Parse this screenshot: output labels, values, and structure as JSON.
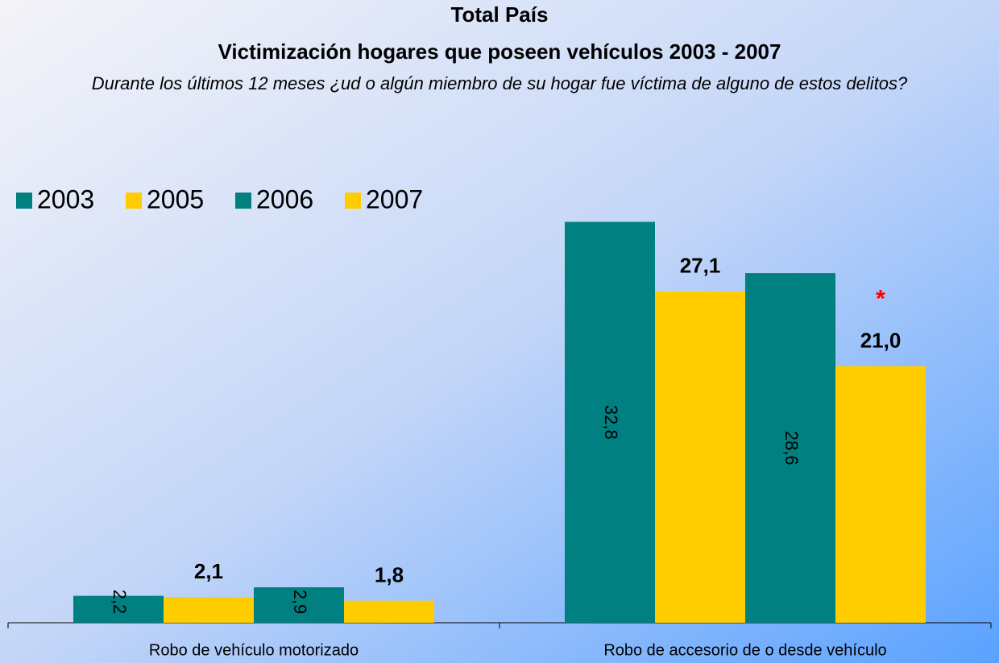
{
  "chart_data": {
    "type": "bar",
    "title": "Total País",
    "subtitle": "Victimización hogares que poseen vehículos 2003 - 2007",
    "question": "Durante los últimos 12 meses ¿ud o algún miembro de su hogar fue víctima de alguno de estos delitos?",
    "categories": [
      "Robo de vehículo motorizado",
      "Robo de accesorio de o desde vehículo"
    ],
    "series": [
      {
        "name": "2003",
        "color": "#008080",
        "values": [
          2.2,
          32.8
        ],
        "value_labels": [
          "2,2",
          "32,8"
        ]
      },
      {
        "name": "2005",
        "color": "#ffcc00",
        "values": [
          2.1,
          27.1
        ],
        "value_labels": [
          "2,1",
          "27,1"
        ]
      },
      {
        "name": "2006",
        "color": "#008080",
        "values": [
          2.9,
          28.6
        ],
        "value_labels": [
          "2,9",
          "28,6"
        ]
      },
      {
        "name": "2007",
        "color": "#ffcc00",
        "values": [
          1.8,
          21.0
        ],
        "value_labels": [
          "1,8",
          "21,0"
        ]
      }
    ],
    "annotation": "*",
    "annotation_color": "#ff0000",
    "ylim": [
      0,
      35
    ],
    "legend": "top-left"
  }
}
